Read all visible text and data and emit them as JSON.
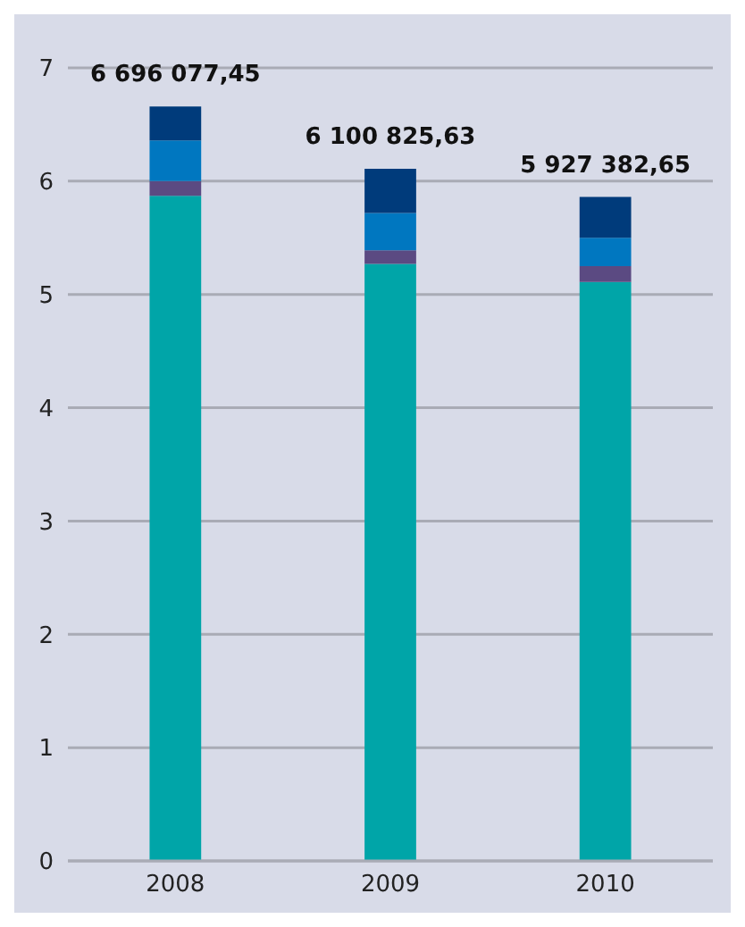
{
  "chart_data": {
    "type": "bar",
    "stacked": true,
    "categories": [
      "2008",
      "2009",
      "2010"
    ],
    "series": [
      {
        "color": "#00a5a8",
        "values": [
          5.87,
          5.27,
          5.11
        ]
      },
      {
        "color": "#5b4a82",
        "values": [
          0.13,
          0.12,
          0.14
        ]
      },
      {
        "color": "#0077c0",
        "values": [
          0.36,
          0.33,
          0.25
        ]
      },
      {
        "color": "#003b7b",
        "values": [
          0.3,
          0.39,
          0.36
        ]
      }
    ],
    "annotations": [
      {
        "text": "6 696 077,45",
        "x": "2008",
        "y": 6.66
      },
      {
        "text": "6 100 825,63",
        "x": "2009",
        "y": 6.11
      },
      {
        "text": "5 927 382,65",
        "x": "2010",
        "y": 5.86
      }
    ],
    "ylim": [
      0,
      7
    ],
    "yticks": [
      0,
      1,
      2,
      3,
      4,
      5,
      6,
      7
    ],
    "grid": "y"
  }
}
